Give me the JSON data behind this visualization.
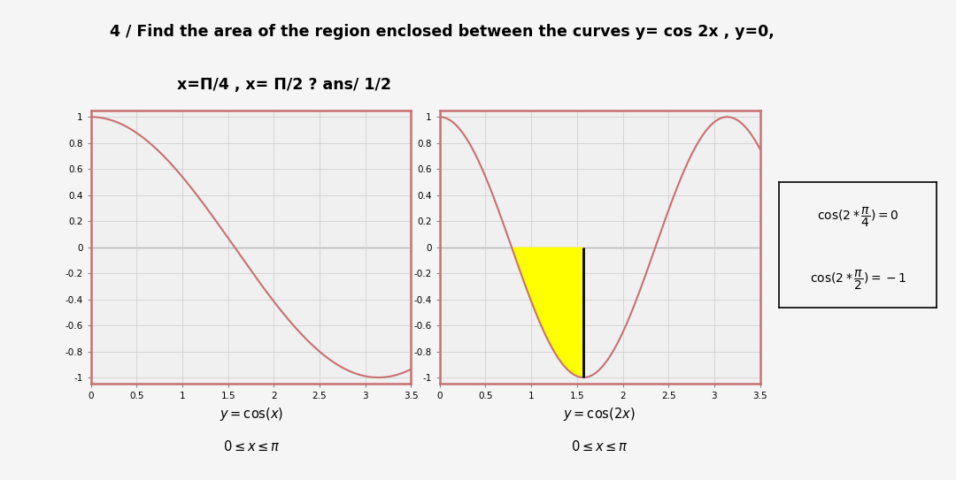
{
  "title_line1": "4 / Find the area of the region enclosed between the curves y= cos 2x , y=0,",
  "title_line2": "x=Π/4 , x= Π/2 ? ans/ 1/2",
  "title_fontsize": 12.5,
  "background_color": "#f5f5f5",
  "plot_bg_color": "#f0f0f0",
  "curve_color": "#c87070",
  "fill_color": "#ffff00",
  "fill_edge_color": "#000000",
  "hline_color": "#888888",
  "box_color": "#c87070",
  "ann_box_color": "#000000",
  "x_min": 0,
  "x_max": 3.5,
  "y_min": -1.05,
  "y_max": 1.05,
  "x_ticks": [
    0,
    0.5,
    1,
    1.5,
    2,
    2.5,
    3,
    3.5
  ],
  "x_tick_labels": [
    "0",
    "0.5",
    "1",
    "1.5",
    "2",
    "2.5",
    "3",
    "3.5"
  ],
  "y_ticks": [
    -1,
    -0.8,
    -0.6,
    -0.4,
    -0.2,
    0,
    0.2,
    0.4,
    0.6,
    0.8,
    1
  ],
  "y_tick_labels": [
    "-1",
    "-0.8",
    "-0.6",
    "-0.4",
    "-0.2",
    "0",
    "0.2",
    "0.4",
    "0.6",
    "0.8",
    "1"
  ],
  "left_label_line1": "$y = \\cos(x)$",
  "left_label_line2": "$0 \\leq x \\leq \\pi$",
  "right_label_line1": "$y = \\cos(2x)$",
  "right_label_line2": "$0 \\leq x \\leq \\pi$",
  "annotation_line1": "$\\cos(2*\\dfrac{\\pi}{4}) = 0$",
  "annotation_line2": "$\\cos(2*\\dfrac{\\pi}{2}) = -1$",
  "pi_quarter": 0.7853981633974483,
  "pi_half": 1.5707963267948966,
  "pi": 3.141592653589793
}
